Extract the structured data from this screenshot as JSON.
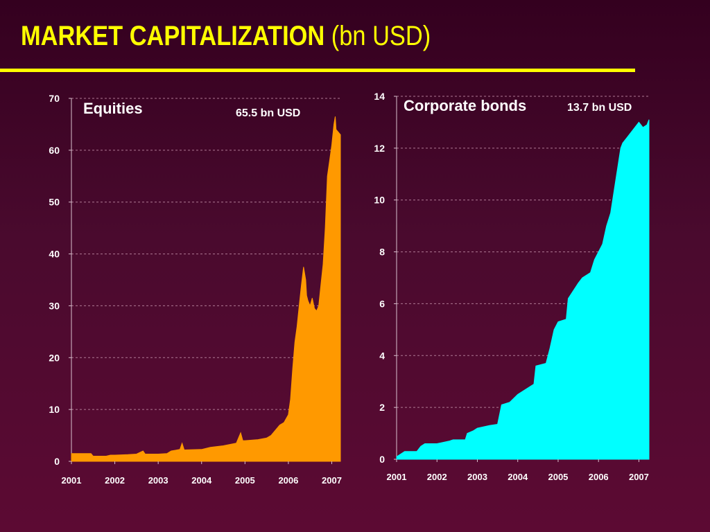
{
  "slide": {
    "title_bold": "MARKET CAPITALIZATION",
    "title_rest": "(bn USD)"
  },
  "colors": {
    "background": "#4a0a2e",
    "title": "#ffff00",
    "equities": "#ff9900",
    "bonds": "#00ffff"
  },
  "chart_data": [
    {
      "type": "area",
      "title": "Equities",
      "annotation": "65.5 bn USD",
      "color": "#ff9900",
      "xlim": [
        2001,
        2007.2
      ],
      "ylim": [
        0,
        70
      ],
      "yticks": [
        0,
        10,
        20,
        30,
        40,
        50,
        60,
        70
      ],
      "xtick_labels": [
        "2001",
        "2002",
        "2003",
        "2004",
        "2005",
        "2006",
        "2007"
      ],
      "grid": true,
      "x": [
        2001.0,
        2001.3,
        2001.45,
        2001.5,
        2001.8,
        2001.9,
        2002.0,
        2002.3,
        2002.5,
        2002.65,
        2002.7,
        2003.0,
        2003.2,
        2003.3,
        2003.5,
        2003.55,
        2003.6,
        2004.0,
        2004.2,
        2004.5,
        2004.8,
        2004.9,
        2004.95,
        2005.0,
        2005.3,
        2005.5,
        2005.6,
        2005.8,
        2005.9,
        2006.0,
        2006.05,
        2006.1,
        2006.15,
        2006.2,
        2006.25,
        2006.3,
        2006.35,
        2006.4,
        2006.42,
        2006.45,
        2006.5,
        2006.55,
        2006.6,
        2006.65,
        2006.7,
        2006.75,
        2006.8,
        2006.85,
        2006.9,
        2006.95,
        2007.0,
        2007.05,
        2007.08,
        2007.1,
        2007.15,
        2007.2
      ],
      "y": [
        1.5,
        1.5,
        1.5,
        1.0,
        1.0,
        1.2,
        1.2,
        1.3,
        1.4,
        2.0,
        1.4,
        1.4,
        1.5,
        2.0,
        2.3,
        3.5,
        2.2,
        2.3,
        2.7,
        3.0,
        3.5,
        5.5,
        4.0,
        4.0,
        4.2,
        4.5,
        5.0,
        7.0,
        7.5,
        9.0,
        12.0,
        18.0,
        23.0,
        26.0,
        30.0,
        34.0,
        37.5,
        35.0,
        32.0,
        31.0,
        30.0,
        31.5,
        29.5,
        29.0,
        30.0,
        34.0,
        38.0,
        45.0,
        55.0,
        58.0,
        61.0,
        65.0,
        66.5,
        64.0,
        63.5,
        63.0
      ]
    },
    {
      "type": "area",
      "title": "Corporate bonds",
      "annotation": "13.7 bn USD",
      "color": "#00ffff",
      "xlim": [
        2001,
        2007.25
      ],
      "ylim": [
        0,
        14
      ],
      "yticks": [
        0,
        2,
        4,
        6,
        8,
        10,
        12,
        14
      ],
      "xtick_labels": [
        "2001",
        "2002",
        "2003",
        "2004",
        "2005",
        "2006",
        "2007"
      ],
      "grid": true,
      "x": [
        2001.0,
        2001.1,
        2001.2,
        2001.5,
        2001.6,
        2001.7,
        2002.0,
        2002.3,
        2002.4,
        2002.7,
        2002.75,
        2002.9,
        2003.0,
        2003.3,
        2003.5,
        2003.6,
        2003.8,
        2004.0,
        2004.2,
        2004.4,
        2004.45,
        2004.7,
        2004.8,
        2004.9,
        2005.0,
        2005.2,
        2005.25,
        2005.5,
        2005.6,
        2005.8,
        2005.9,
        2006.0,
        2006.1,
        2006.2,
        2006.3,
        2006.4,
        2006.5,
        2006.55,
        2006.6,
        2006.7,
        2006.8,
        2006.9,
        2007.0,
        2007.1,
        2007.2,
        2007.25
      ],
      "y": [
        0.1,
        0.2,
        0.3,
        0.3,
        0.5,
        0.6,
        0.6,
        0.7,
        0.75,
        0.75,
        1.0,
        1.1,
        1.2,
        1.3,
        1.35,
        2.1,
        2.2,
        2.5,
        2.7,
        2.9,
        3.6,
        3.7,
        4.3,
        5.0,
        5.3,
        5.4,
        6.2,
        6.8,
        7.0,
        7.2,
        7.7,
        8.0,
        8.3,
        9.0,
        9.5,
        10.5,
        11.5,
        12.0,
        12.2,
        12.4,
        12.6,
        12.8,
        13.0,
        12.8,
        12.9,
        13.1
      ]
    }
  ]
}
